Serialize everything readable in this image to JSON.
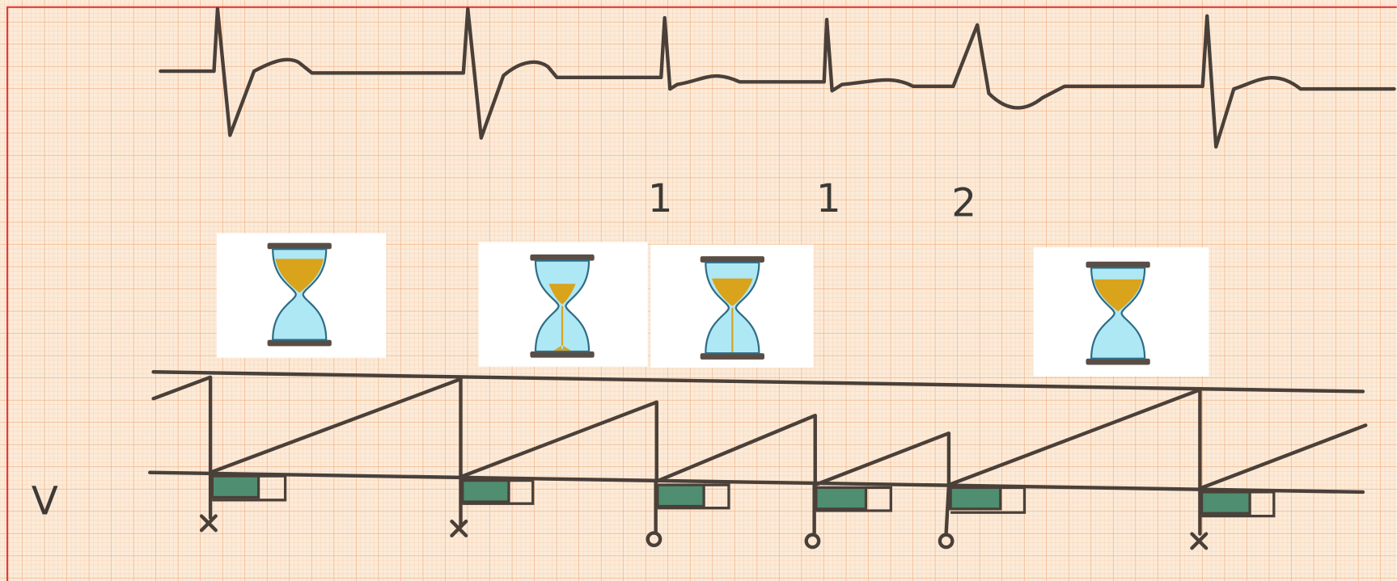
{
  "labels": {
    "beats": [
      "1",
      "1",
      "2"
    ],
    "lead": "V"
  }
}
